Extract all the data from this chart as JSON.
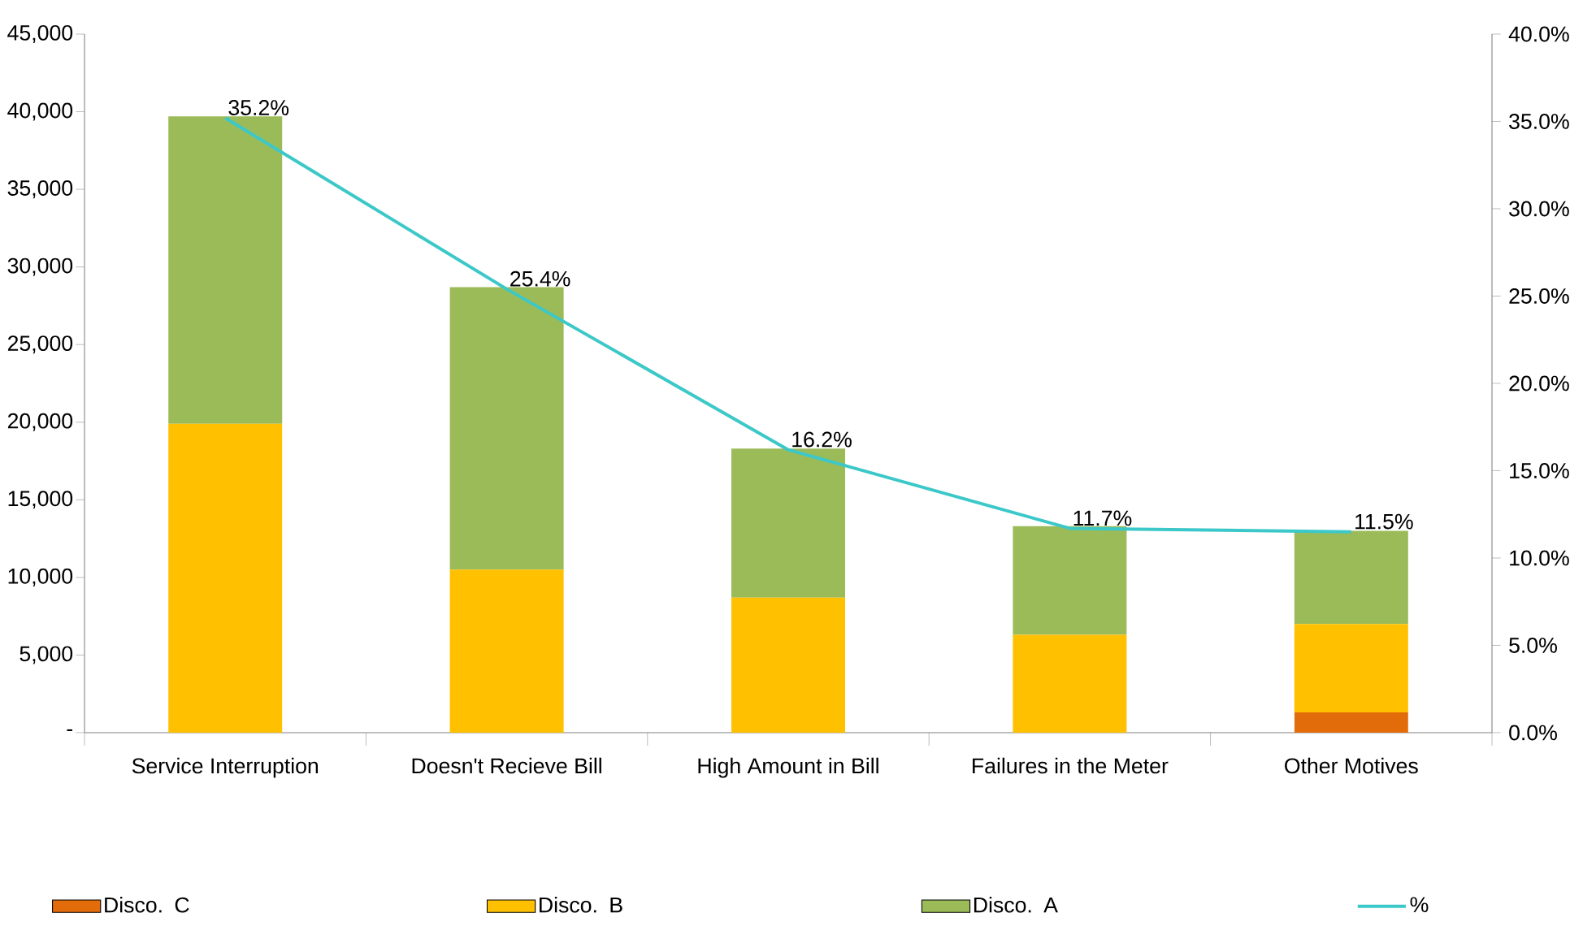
{
  "chart_data": {
    "type": "bar",
    "stacked": true,
    "legend": "bottom",
    "categories": [
      "Service Interruption",
      "Doesn't Recieve Bill",
      "High Amount in Bill",
      "Failures in the Meter",
      "Other Motives"
    ],
    "series": [
      {
        "name": "Disco. C",
        "color": "#e36c0a",
        "values": [
          0,
          0,
          0,
          0,
          1300
        ]
      },
      {
        "name": "Disco. B",
        "color": "#ffc000",
        "values": [
          19900,
          10500,
          8700,
          6300,
          5700
        ]
      },
      {
        "name": "Disco. A",
        "color": "#9bbb59",
        "values": [
          19800,
          18200,
          9600,
          7000,
          6000
        ]
      },
      {
        "name": "%",
        "type": "line",
        "axis": "y2",
        "color": "#3cc8c8",
        "values": [
          35.2,
          25.4,
          16.2,
          11.7,
          11.5
        ],
        "value_labels": [
          "35.2%",
          "25.4%",
          "16.2%",
          "11.7%",
          "11.5%"
        ]
      }
    ],
    "ylim": [
      0,
      45000
    ],
    "yticks": [
      {
        "value": 0,
        "label": "-"
      },
      {
        "value": 5000,
        "label": "5,000"
      },
      {
        "value": 10000,
        "label": "10,000"
      },
      {
        "value": 15000,
        "label": "15,000"
      },
      {
        "value": 20000,
        "label": "20,000"
      },
      {
        "value": 25000,
        "label": "25,000"
      },
      {
        "value": 30000,
        "label": "30,000"
      },
      {
        "value": 35000,
        "label": "35,000"
      },
      {
        "value": 40000,
        "label": "40,000"
      },
      {
        "value": 45000,
        "label": "45,000"
      }
    ],
    "y2lim": [
      0,
      40
    ],
    "y2ticks": [
      {
        "value": 0,
        "label": "0.0%"
      },
      {
        "value": 5,
        "label": "5.0%"
      },
      {
        "value": 10,
        "label": "10.0%"
      },
      {
        "value": 15,
        "label": "15.0%"
      },
      {
        "value": 20,
        "label": "20.0%"
      },
      {
        "value": 25,
        "label": "25.0%"
      },
      {
        "value": 30,
        "label": "30.0%"
      },
      {
        "value": 35,
        "label": "35.0%"
      },
      {
        "value": 40,
        "label": "40.0%"
      }
    ]
  }
}
